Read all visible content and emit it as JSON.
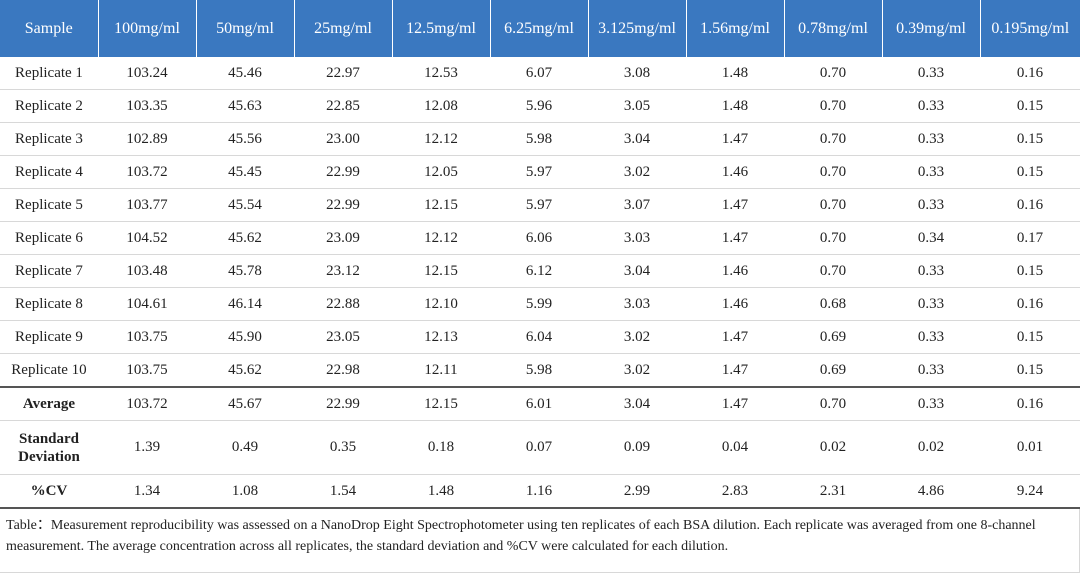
{
  "table": {
    "header": [
      "Sample",
      "100mg/ml",
      "50mg/ml",
      "25mg/ml",
      "12.5mg/ml",
      "6.25mg/ml",
      "3.125mg/ml",
      "1.56mg/ml",
      "0.78mg/ml",
      "0.39mg/ml",
      "0.195mg/ml"
    ],
    "rows": [
      [
        "Replicate 1",
        "103.24",
        "45.46",
        "22.97",
        "12.53",
        "6.07",
        "3.08",
        "1.48",
        "0.70",
        "0.33",
        "0.16"
      ],
      [
        "Replicate 2",
        "103.35",
        "45.63",
        "22.85",
        "12.08",
        "5.96",
        "3.05",
        "1.48",
        "0.70",
        "0.33",
        "0.15"
      ],
      [
        "Replicate 3",
        "102.89",
        "45.56",
        "23.00",
        "12.12",
        "5.98",
        "3.04",
        "1.47",
        "0.70",
        "0.33",
        "0.15"
      ],
      [
        "Replicate 4",
        "103.72",
        "45.45",
        "22.99",
        "12.05",
        "5.97",
        "3.02",
        "1.46",
        "0.70",
        "0.33",
        "0.15"
      ],
      [
        "Replicate 5",
        "103.77",
        "45.54",
        "22.99",
        "12.15",
        "5.97",
        "3.07",
        "1.47",
        "0.70",
        "0.33",
        "0.16"
      ],
      [
        "Replicate 6",
        "104.52",
        "45.62",
        "23.09",
        "12.12",
        "6.06",
        "3.03",
        "1.47",
        "0.70",
        "0.34",
        "0.17"
      ],
      [
        "Replicate 7",
        "103.48",
        "45.78",
        "23.12",
        "12.15",
        "6.12",
        "3.04",
        "1.46",
        "0.70",
        "0.33",
        "0.15"
      ],
      [
        "Replicate 8",
        "104.61",
        "46.14",
        "22.88",
        "12.10",
        "5.99",
        "3.03",
        "1.46",
        "0.68",
        "0.33",
        "0.16"
      ],
      [
        "Replicate 9",
        "103.75",
        "45.90",
        "23.05",
        "12.13",
        "6.04",
        "3.02",
        "1.47",
        "0.69",
        "0.33",
        "0.15"
      ],
      [
        "Replicate 10",
        "103.75",
        "45.62",
        "22.98",
        "12.11",
        "5.98",
        "3.02",
        "1.47",
        "0.69",
        "0.33",
        "0.15"
      ]
    ],
    "summary": [
      [
        "Average",
        "103.72",
        "45.67",
        "22.99",
        "12.15",
        "6.01",
        "3.04",
        "1.47",
        "0.70",
        "0.33",
        "0.16"
      ],
      [
        "Standard Deviation",
        "1.39",
        "0.49",
        "0.35",
        "0.18",
        "0.07",
        "0.09",
        "0.04",
        "0.02",
        "0.02",
        "0.01"
      ],
      [
        "%CV",
        "1.34",
        "1.08",
        "1.54",
        "1.48",
        "1.16",
        "2.99",
        "2.83",
        "2.31",
        "4.86",
        "9.24"
      ]
    ]
  },
  "caption": "Table：Measurement reproducibility was assessed on a NanoDrop Eight Spectrophotometer using ten replicates of each BSA dilution. Each replicate was averaged from one 8-channel measurement. The average concentration across all replicates, the standard deviation and %CV were calculated for each dilution."
}
